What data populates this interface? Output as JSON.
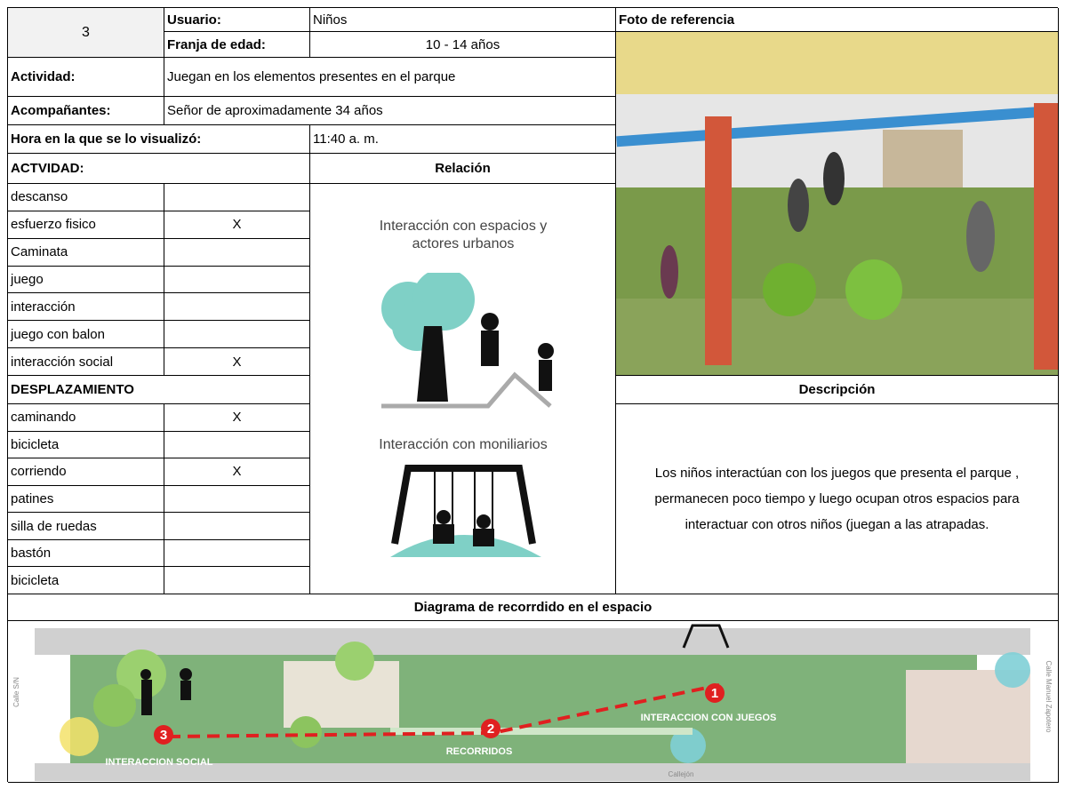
{
  "header": {
    "number": "3",
    "user_label": "Usuario:",
    "user": "Niños",
    "age_label": "Franja de edad:",
    "age": "10 - 14 años",
    "photo_title": "Foto de referencia"
  },
  "activity": {
    "label": "Actividad:",
    "value": "Juegan en los elementos presentes en el parque"
  },
  "companions": {
    "label": "Acompañantes:",
    "value": "Señor de aproximadamente 34 años"
  },
  "time": {
    "label": "Hora en la que se lo visualizó:",
    "value": "11:40 a. m."
  },
  "activities": {
    "title": "ACTVIDAD:",
    "rows": [
      {
        "name": "descanso"
      },
      {
        "name": "esfuerzo fisico",
        "mark": "X"
      },
      {
        "name": "Caminata"
      },
      {
        "name": "juego"
      },
      {
        "name": "interacción"
      },
      {
        "name": "juego con balon"
      },
      {
        "name": "interacción social",
        "mark": "X"
      }
    ]
  },
  "movement": {
    "title": "DESPLAZAMIENTO",
    "rows": [
      {
        "name": "caminando",
        "mark": "X"
      },
      {
        "name": "bicicleta"
      },
      {
        "name": "corriendo",
        "mark": "X"
      },
      {
        "name": "patines"
      },
      {
        "name": "silla de ruedas"
      },
      {
        "name": "bastón"
      },
      {
        "name": "bicicleta"
      }
    ]
  },
  "relation": {
    "title": "Relación",
    "items": [
      "Interacción con espacios y actores urbanos",
      "Interacción con moniliarios"
    ]
  },
  "description": {
    "title": "Descripción",
    "text": "Los niños interactúan con los juegos que presenta el parque , permanecen poco tiempo y luego ocupan otros espacios para interactuar con otros niños (juegan a las atrapadas."
  },
  "diagram": {
    "title": "Diagrama de recorrdido en el espacio",
    "street_left": "Calle S/N",
    "street_right": "Calle Manuel Zapotero",
    "alley": "Callejón",
    "points": [
      {
        "number": "1",
        "label": "INTERACCION CON JUEGOS"
      },
      {
        "number": "2",
        "label": "RECORRIDOS"
      },
      {
        "number": "3",
        "label": "INTERACCION SOCIAL"
      }
    ]
  }
}
